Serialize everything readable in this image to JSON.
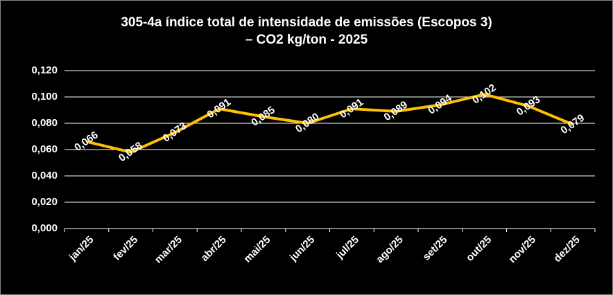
{
  "chart_data": {
    "type": "line",
    "title": [
      "305-4a índice total de intensidade de emissões (Escopos 3)",
      "– CO2 kg/ton - 2025"
    ],
    "categories": [
      "jan/25",
      "fev/25",
      "mar/25",
      "abr/25",
      "mai/25",
      "jun/25",
      "jul/25",
      "ago/25",
      "set/25",
      "out/25",
      "nov/25",
      "dez/25"
    ],
    "series": [
      {
        "color": "#ffc000",
        "values": [
          0.066,
          0.058,
          0.073,
          0.091,
          0.085,
          0.08,
          0.091,
          0.089,
          0.094,
          0.102,
          0.093,
          0.079
        ],
        "value_labels": [
          "0,066",
          "0,058",
          "0,073",
          "0,091",
          "0,085",
          "0,080",
          "0,091",
          "0,089",
          "0,094",
          "0,102",
          "0,093",
          "0,079"
        ]
      }
    ],
    "ylim": [
      0,
      0.12
    ],
    "yticks": [
      {
        "value": 0,
        "label": "0,000"
      },
      {
        "value": 0.02,
        "label": "0,020"
      },
      {
        "value": 0.04,
        "label": "0,040"
      },
      {
        "value": 0.06,
        "label": "0,060"
      },
      {
        "value": 0.08,
        "label": "0,080"
      },
      {
        "value": 0.1,
        "label": "0,100"
      },
      {
        "value": 0.12,
        "label": "0,120"
      }
    ],
    "grid": true
  }
}
